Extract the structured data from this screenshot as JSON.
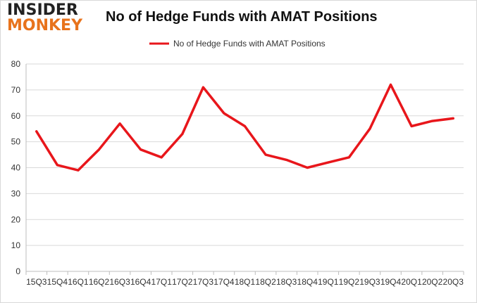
{
  "logo": {
    "line1": "INSIDER",
    "line2": "MONKEY"
  },
  "chart_data": {
    "type": "line",
    "title": "No of Hedge Funds with AMAT Positions",
    "xlabel": "",
    "ylabel": "",
    "ylim": [
      0,
      80
    ],
    "yticks": [
      0,
      10,
      20,
      30,
      40,
      50,
      60,
      70,
      80
    ],
    "grid": true,
    "legend_position": "top-center",
    "categories": [
      "15Q3",
      "15Q4",
      "16Q1",
      "16Q2",
      "16Q3",
      "16Q4",
      "17Q1",
      "17Q2",
      "17Q3",
      "17Q4",
      "18Q1",
      "18Q2",
      "18Q3",
      "18Q4",
      "19Q1",
      "19Q2",
      "19Q3",
      "19Q4",
      "20Q1",
      "20Q2",
      "20Q3"
    ],
    "series": [
      {
        "name": "No of Hedge Funds with AMAT Positions",
        "color": "#e8161b",
        "values": [
          54,
          41,
          39,
          47,
          57,
          47,
          44,
          53,
          71,
          61,
          56,
          45,
          43,
          40,
          42,
          44,
          55,
          72,
          56,
          58,
          59
        ]
      }
    ]
  }
}
